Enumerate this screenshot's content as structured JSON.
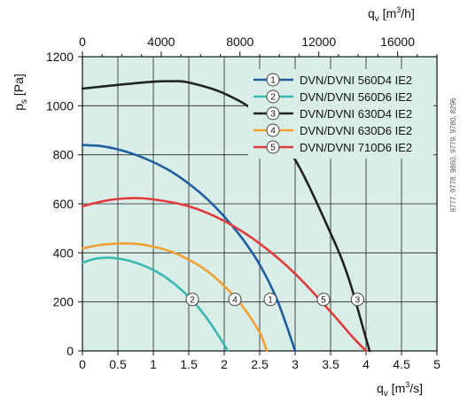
{
  "chart_data": {
    "type": "line",
    "title": "",
    "xlabel": "q_v [m³/s]",
    "xlabel_top": "q_v [m³/h]",
    "ylabel": "p_s [Pa]",
    "xlim": [
      0,
      5
    ],
    "ylim": [
      0,
      1200
    ],
    "top_xlim": [
      0,
      18000
    ],
    "x_ticks": [
      0,
      0.5,
      1,
      1.5,
      2,
      2.5,
      3,
      3.5,
      4,
      4.5,
      5
    ],
    "x_tick_labels": [
      "0",
      "0.5",
      "1",
      "1.5",
      "2",
      "2.5",
      "3",
      "3.5",
      "4",
      "4.5",
      "5"
    ],
    "top_x_ticks": [
      0,
      4000,
      8000,
      12000,
      16000
    ],
    "top_x_tick_labels": [
      "0",
      "4000",
      "8000",
      "12000",
      "16000"
    ],
    "y_ticks": [
      0,
      200,
      400,
      600,
      800,
      1000,
      1200
    ],
    "y_tick_labels": [
      "0",
      "200",
      "400",
      "600",
      "800",
      "1000",
      "1200"
    ],
    "grid": true,
    "legend_position": "top-right",
    "background_color": "#daeee9",
    "side_note": "9777, 9778, 9860, 9779, 9780, 8296",
    "series": [
      {
        "name": "DVN/DVNI 560D4 IE2",
        "marker": "1",
        "color": "#1f5fa0",
        "marker_at": [
          2.65,
          210
        ],
        "x": [
          0,
          0.25,
          0.5,
          0.75,
          1.0,
          1.25,
          1.5,
          1.75,
          2.0,
          2.25,
          2.5,
          2.75,
          3.0
        ],
        "y": [
          840,
          836,
          822,
          800,
          770,
          732,
          682,
          622,
          548,
          460,
          352,
          205,
          0
        ]
      },
      {
        "name": "DVN/DVNI 560D6 IE2",
        "marker": "2",
        "color": "#3bb8b0",
        "marker_at": [
          1.55,
          210
        ],
        "x": [
          0,
          0.2,
          0.4,
          0.6,
          0.8,
          1.0,
          1.2,
          1.4,
          1.6,
          1.8,
          2.0,
          2.05
        ],
        "y": [
          360,
          377,
          380,
          372,
          355,
          330,
          295,
          248,
          190,
          115,
          25,
          0
        ]
      },
      {
        "name": "DVN/DVNI 630D4 IE2",
        "marker": "3",
        "color": "#222222",
        "marker_at": [
          3.88,
          210
        ],
        "x": [
          0,
          0.5,
          1.0,
          1.25,
          1.5,
          2.0,
          2.5,
          3.0,
          3.5,
          3.75,
          4.0,
          4.05
        ],
        "y": [
          1070,
          1085,
          1098,
          1100,
          1095,
          1050,
          960,
          780,
          480,
          300,
          50,
          0
        ]
      },
      {
        "name": "DVN/DVNI 630D6 IE2",
        "marker": "4",
        "color": "#f0a030",
        "marker_at": [
          2.15,
          210
        ],
        "x": [
          0,
          0.25,
          0.5,
          0.75,
          1.0,
          1.25,
          1.5,
          1.75,
          2.0,
          2.25,
          2.5,
          2.6
        ],
        "y": [
          418,
          432,
          438,
          437,
          425,
          405,
          372,
          328,
          265,
          185,
          75,
          0
        ]
      },
      {
        "name": "DVN/DVNI 710D6 IE2",
        "marker": "5",
        "color": "#e03c3c",
        "marker_at": [
          3.4,
          210
        ],
        "x": [
          0,
          0.25,
          0.5,
          0.75,
          1.0,
          1.5,
          2.0,
          2.5,
          3.0,
          3.5,
          3.8,
          4.0
        ],
        "y": [
          590,
          608,
          620,
          623,
          618,
          590,
          530,
          438,
          315,
          160,
          60,
          0
        ]
      }
    ]
  }
}
